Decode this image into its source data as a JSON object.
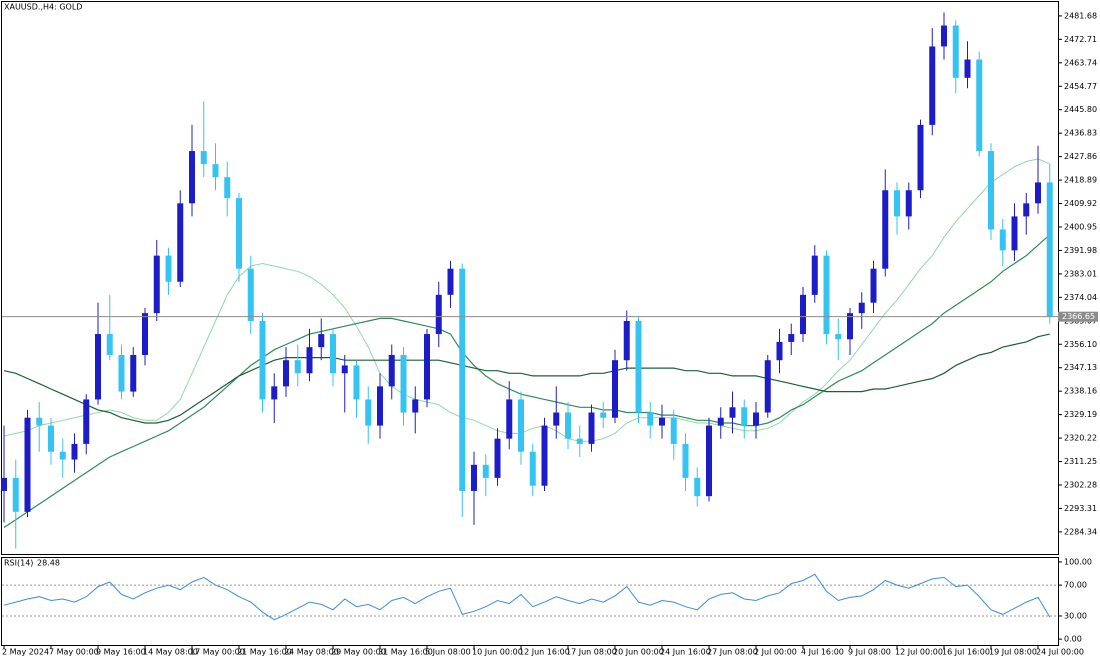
{
  "chart_data": {
    "type": "candlestick",
    "title": "XAUUSD.,H4: GOLD",
    "categories": [
      "2 May 2024",
      null,
      null,
      null,
      "7 May 00:00",
      null,
      null,
      null,
      "9 May 16:00",
      null,
      null,
      null,
      "14 May 08:00",
      null,
      null,
      null,
      "17 May 00:00",
      null,
      null,
      null,
      "21 May 16:00",
      null,
      null,
      null,
      "24 May 08:00",
      null,
      null,
      null,
      "29 May 00:00",
      null,
      null,
      null,
      "31 May 16:00",
      null,
      null,
      null,
      "5 Jun 08:00",
      null,
      null,
      null,
      "10 Jun 00:00",
      null,
      null,
      null,
      "12 Jun 16:00",
      null,
      null,
      null,
      "17 Jun 08:00",
      null,
      null,
      null,
      "20 Jun 00:00",
      null,
      null,
      null,
      "24 Jun 16:00",
      null,
      null,
      null,
      "27 Jun 08:00",
      null,
      null,
      null,
      "2 Jul 00:00",
      null,
      null,
      null,
      "4 Jul 16:00",
      null,
      null,
      null,
      "9 Jul 08:00",
      null,
      null,
      null,
      "12 Jul 00:00",
      null,
      null,
      null,
      "16 Jul 16:00",
      null,
      null,
      null,
      "19 Jul 08:00",
      null,
      null,
      null,
      "24 Jul 00:00",
      null
    ],
    "open": [
      2300,
      2305,
      2292,
      2328,
      2325,
      2315,
      2312,
      2318,
      2335,
      2360,
      2352,
      2338,
      2352,
      2368,
      2390,
      2380,
      2410,
      2430,
      2425,
      2420,
      2412,
      2385,
      2365,
      2335,
      2340,
      2350,
      2345,
      2355,
      2360,
      2345,
      2348,
      2335,
      2325,
      2340,
      2352,
      2330,
      2335,
      2360,
      2375,
      2385,
      2300,
      2310,
      2305,
      2320,
      2335,
      2315,
      2302,
      2325,
      2330,
      2320,
      2318,
      2330,
      2328,
      2350,
      2365,
      2330,
      2325,
      2328,
      2318,
      2305,
      2298,
      2325,
      2328,
      2332,
      2325,
      2330,
      2350,
      2357,
      2360,
      2375,
      2390,
      2360,
      2358,
      2368,
      2372,
      2385,
      2415,
      2405,
      2415,
      2440,
      2470,
      2478,
      2458,
      2465,
      2430,
      2400,
      2392,
      2405,
      2410,
      2418
    ],
    "high": [
      2325,
      2312,
      2331,
      2334,
      2328,
      2320,
      2322,
      2337,
      2372,
      2375,
      2356,
      2355,
      2370,
      2396,
      2393,
      2415,
      2440,
      2449,
      2433,
      2426,
      2414,
      2390,
      2368,
      2345,
      2355,
      2356,
      2362,
      2366,
      2362,
      2352,
      2350,
      2340,
      2345,
      2356,
      2355,
      2340,
      2362,
      2380,
      2388,
      2387,
      2315,
      2314,
      2324,
      2342,
      2338,
      2318,
      2328,
      2340,
      2334,
      2325,
      2333,
      2334,
      2354,
      2369,
      2367,
      2334,
      2333,
      2331,
      2322,
      2309,
      2328,
      2332,
      2338,
      2335,
      2334,
      2352,
      2362,
      2364,
      2378,
      2394,
      2392,
      2366,
      2370,
      2376,
      2388,
      2423,
      2418,
      2418,
      2442,
      2477,
      2483,
      2480,
      2472,
      2468,
      2433,
      2404,
      2410,
      2414,
      2432,
      2425
    ],
    "low": [
      2288,
      2278,
      2290,
      2315,
      2310,
      2305,
      2307,
      2314,
      2333,
      2350,
      2335,
      2336,
      2348,
      2365,
      2375,
      2378,
      2405,
      2420,
      2415,
      2405,
      2380,
      2360,
      2330,
      2326,
      2336,
      2340,
      2342,
      2350,
      2340,
      2330,
      2328,
      2318,
      2320,
      2335,
      2325,
      2322,
      2332,
      2355,
      2370,
      2290,
      2287,
      2298,
      2302,
      2316,
      2310,
      2298,
      2300,
      2320,
      2316,
      2313,
      2315,
      2324,
      2326,
      2346,
      2326,
      2320,
      2320,
      2312,
      2300,
      2294,
      2296,
      2320,
      2322,
      2320,
      2320,
      2328,
      2345,
      2352,
      2357,
      2372,
      2356,
      2350,
      2352,
      2362,
      2368,
      2382,
      2398,
      2400,
      2412,
      2436,
      2465,
      2452,
      2454,
      2428,
      2396,
      2386,
      2388,
      2398,
      2406,
      2364
    ],
    "close": [
      2305,
      2292,
      2328,
      2325,
      2315,
      2312,
      2318,
      2335,
      2360,
      2352,
      2338,
      2352,
      2368,
      2390,
      2380,
      2410,
      2430,
      2425,
      2420,
      2412,
      2385,
      2365,
      2335,
      2340,
      2350,
      2345,
      2355,
      2360,
      2345,
      2348,
      2335,
      2325,
      2340,
      2352,
      2330,
      2335,
      2360,
      2375,
      2385,
      2300,
      2310,
      2305,
      2320,
      2335,
      2315,
      2302,
      2325,
      2330,
      2320,
      2318,
      2330,
      2328,
      2350,
      2365,
      2330,
      2325,
      2328,
      2318,
      2305,
      2298,
      2325,
      2328,
      2332,
      2325,
      2330,
      2350,
      2357,
      2360,
      2375,
      2390,
      2360,
      2358,
      2368,
      2372,
      2385,
      2415,
      2405,
      2415,
      2440,
      2470,
      2478,
      2458,
      2465,
      2430,
      2400,
      2392,
      2405,
      2410,
      2418,
      2366.65
    ],
    "up_color": "#1c1cc8",
    "down_color": "#35c4f2",
    "price_line_color": "#8c8c8c",
    "ylim": [
      2275.5,
      2487.0
    ],
    "yticks": [
      2481.68,
      2472.71,
      2463.74,
      2454.77,
      {
        "value": 2445.8,
        "label": "2445.80"
      },
      2436.83,
      2427.86,
      2418.89,
      2409.92,
      2400.95,
      2391.98,
      2383.01,
      2374.04,
      2365.07,
      {
        "value": 2356.1,
        "label": "2356.10"
      },
      2347.13,
      2338.16,
      2329.19,
      2320.22,
      2311.25,
      2302.28,
      2293.31,
      2284.34
    ],
    "ma": [
      {
        "color": "#8fd9a8",
        "values": [
          2321,
          2322,
          2323,
          2325,
          2326,
          2327,
          2328,
          2329,
          2330,
          2331,
          2330,
          2328,
          2327,
          2327,
          2330,
          2335,
          2345,
          2355,
          2365,
          2375,
          2382,
          2386,
          2387,
          2386,
          2385,
          2384,
          2382,
          2379,
          2375,
          2370,
          2363,
          2355,
          2345,
          2340,
          2337,
          2335,
          2334,
          2333,
          2330,
          2328,
          2327,
          2325,
          2323,
          2322,
          2322,
          2324,
          2325,
          2323,
          2320,
          2319,
          2319,
          2320,
          2322,
          2326,
          2328,
          2328,
          2328,
          2328,
          2327,
          2326,
          2326,
          2325,
          2324,
          2323,
          2323,
          2324,
          2326,
          2330,
          2334,
          2337,
          2341,
          2346,
          2350,
          2356,
          2362,
          2368,
          2373,
          2379,
          2385,
          2390,
          2397,
          2403,
          2408,
          2413,
          2418,
          2421,
          2424,
          2426,
          2427,
          2425
        ]
      },
      {
        "color": "#2e8b57",
        "values": [
          2286,
          2289,
          2292,
          2295,
          2298,
          2301,
          2304,
          2307,
          2310,
          2313,
          2315,
          2317,
          2319,
          2321,
          2323,
          2326,
          2329,
          2332,
          2336,
          2340,
          2344,
          2348,
          2351,
          2354,
          2356,
          2358,
          2360,
          2361,
          2362,
          2363,
          2364,
          2365,
          2366,
          2366,
          2365,
          2364,
          2363,
          2362,
          2360,
          2353,
          2348,
          2344,
          2341,
          2339,
          2337,
          2336,
          2335,
          2334,
          2333,
          2332,
          2332,
          2331,
          2331,
          2330,
          2330,
          2330,
          2329,
          2329,
          2328,
          2327,
          2327,
          2326,
          2326,
          2325,
          2325,
          2326,
          2328,
          2331,
          2333,
          2336,
          2339,
          2342,
          2344,
          2346,
          2349,
          2352,
          2355,
          2358,
          2361,
          2364,
          2368,
          2371,
          2374,
          2377,
          2380,
          2384,
          2387,
          2390,
          2394,
          2398
        ]
      },
      {
        "color": "#1d5e34",
        "values": [
          2346,
          2345,
          2343,
          2341,
          2339,
          2337,
          2335,
          2333,
          2331,
          2330,
          2328,
          2327,
          2326,
          2326,
          2327,
          2329,
          2332,
          2335,
          2338,
          2341,
          2344,
          2346,
          2348,
          2350,
          2351,
          2351,
          2351,
          2351,
          2351,
          2350,
          2350,
          2350,
          2350,
          2350,
          2350,
          2350,
          2350,
          2350,
          2349,
          2348,
          2347,
          2346,
          2346,
          2345,
          2345,
          2344,
          2344,
          2344,
          2344,
          2344,
          2345,
          2345,
          2346,
          2347,
          2347,
          2347,
          2347,
          2347,
          2346,
          2346,
          2345,
          2345,
          2344,
          2344,
          2344,
          2343,
          2342,
          2341,
          2340,
          2339,
          2338,
          2338,
          2338,
          2338,
          2339,
          2339,
          2340,
          2341,
          2342,
          2343,
          2345,
          2348,
          2350,
          2352,
          2353,
          2355,
          2356,
          2357,
          2359,
          2360
        ]
      }
    ],
    "rsi": {
      "title": "RSI(14)",
      "color": "#3b8ce3",
      "values": [
        44,
        48,
        52,
        55,
        50,
        52,
        48,
        55,
        68,
        74,
        58,
        52,
        60,
        66,
        70,
        64,
        74,
        80,
        70,
        64,
        55,
        48,
        35,
        25,
        32,
        40,
        48,
        45,
        38,
        52,
        42,
        45,
        38,
        50,
        54,
        46,
        55,
        62,
        66,
        32,
        36,
        42,
        50,
        46,
        58,
        42,
        48,
        55,
        50,
        46,
        52,
        48,
        56,
        68,
        48,
        44,
        50,
        48,
        42,
        38,
        52,
        58,
        60,
        52,
        50,
        56,
        60,
        72,
        76,
        84,
        62,
        50,
        54,
        56,
        64,
        76,
        70,
        66,
        72,
        78,
        80,
        68,
        70,
        55,
        38,
        32,
        40,
        48,
        54,
        28.48
      ],
      "ylim": [
        -7.6,
        105.1
      ],
      "yticks": [
        {
          "value": 100,
          "label": "100.00"
        },
        {
          "value": 70,
          "label": "70.00"
        },
        {
          "value": 30,
          "label": "30.00"
        },
        {
          "value": 0,
          "label": "0.00"
        }
      ],
      "levels": [
        70,
        30
      ]
    }
  }
}
